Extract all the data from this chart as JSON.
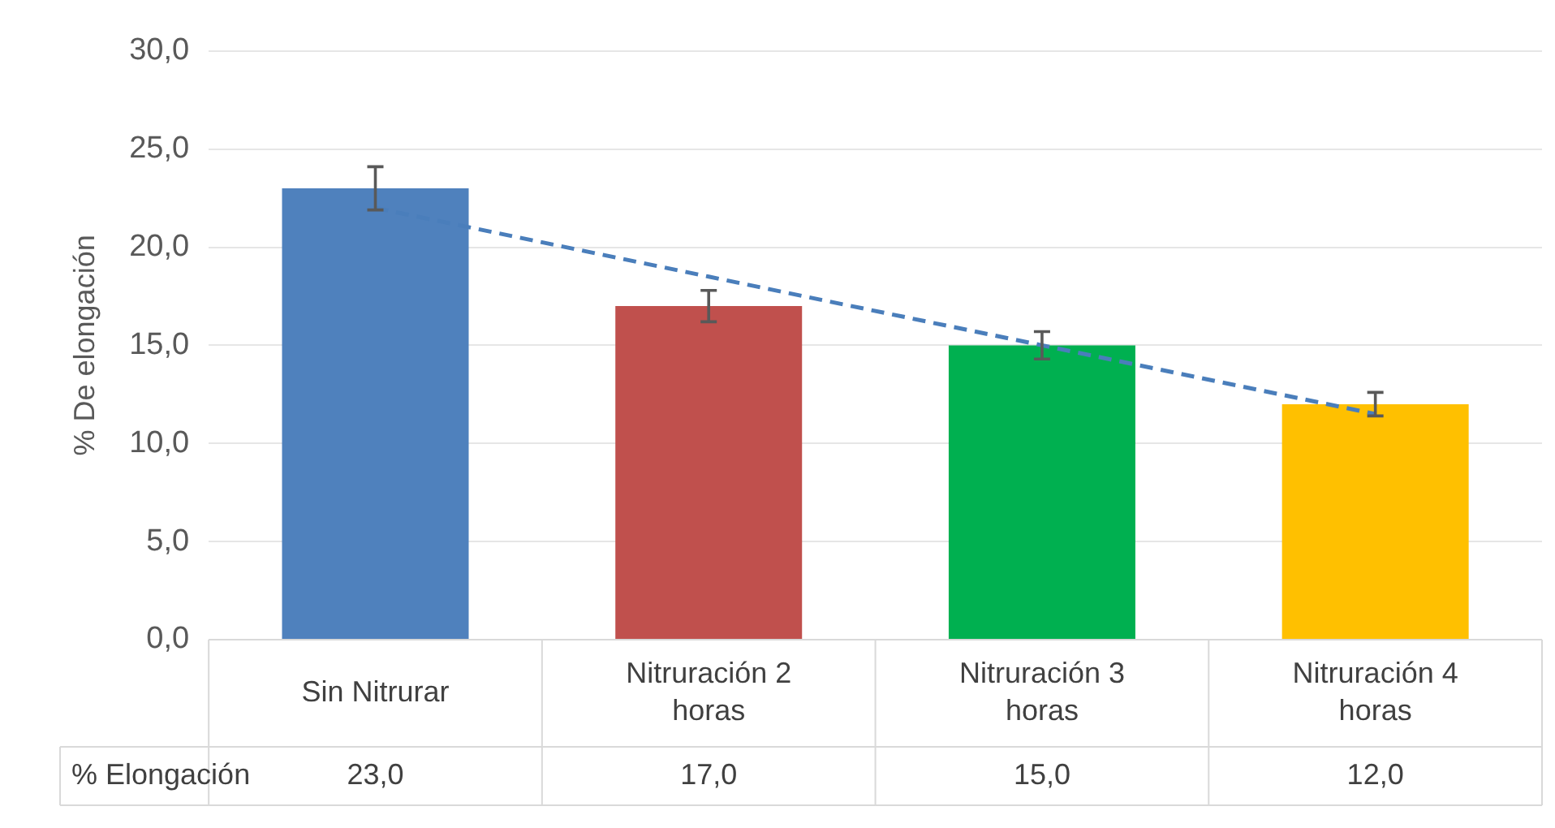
{
  "chart_data": {
    "type": "bar",
    "ylabel": "% De elongación",
    "categories": [
      "Sin Nitrurar",
      "Nitruración 2 horas",
      "Nitruración 3 horas",
      "Nitruración 4 horas"
    ],
    "series": [
      {
        "name": "% Elongación",
        "values": [
          23,
          17,
          15,
          12
        ],
        "colors": [
          "#4f81bd",
          "#c0504d",
          "#00b050",
          "#ffc000"
        ],
        "errors": [
          1.1,
          0.8,
          0.7,
          0.6
        ],
        "value_labels": [
          "23,0",
          "17,0",
          "15,0",
          "12,0"
        ]
      },
      {
        "type": "line",
        "color": "#4a7ebb",
        "line_style": "dashed",
        "marker": "none",
        "values": [
          22,
          18.5,
          15,
          11.5
        ]
      }
    ],
    "ylim": [
      0,
      30
    ],
    "yticks": [
      {
        "value": 0,
        "label": "0,0"
      },
      {
        "value": 5,
        "label": "5,0"
      },
      {
        "value": 10,
        "label": "10,0"
      },
      {
        "value": 15,
        "label": "15,0"
      },
      {
        "value": 20,
        "label": "20,0"
      },
      {
        "value": 25,
        "label": "25,0"
      },
      {
        "value": 30,
        "label": "30,0"
      }
    ],
    "grid": "y",
    "legend": false
  }
}
